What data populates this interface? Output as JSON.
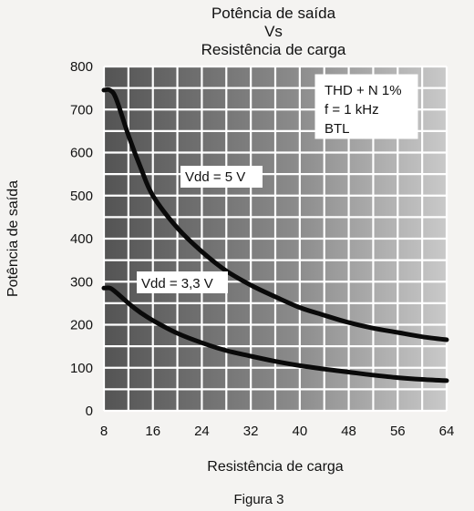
{
  "chart_data": {
    "type": "line",
    "title_lines": [
      "Potência de saída",
      "Vs",
      "Resistência de carga"
    ],
    "xlabel": "Resistência de carga",
    "ylabel": "Potência de saída",
    "caption": "Figura 3",
    "xlim": [
      8,
      64
    ],
    "ylim": [
      0,
      800
    ],
    "x_ticks": [
      8,
      16,
      24,
      32,
      40,
      48,
      56,
      64
    ],
    "y_ticks": [
      0,
      100,
      200,
      300,
      400,
      500,
      600,
      700,
      800
    ],
    "grid": true,
    "conditions": [
      "THD + N 1%",
      "f = 1 kHz",
      "BTL"
    ],
    "series": [
      {
        "name": "Vdd = 5 V",
        "x": [
          8,
          9,
          10,
          12,
          14,
          16,
          20,
          24,
          28,
          32,
          36,
          40,
          44,
          48,
          52,
          56,
          60,
          64
        ],
        "y": [
          745,
          745,
          725,
          640,
          565,
          500,
          425,
          370,
          325,
          292,
          265,
          240,
          222,
          205,
          192,
          182,
          172,
          165
        ]
      },
      {
        "name": "Vdd = 3,3 V",
        "x": [
          8,
          9,
          10,
          12,
          14,
          16,
          20,
          24,
          28,
          32,
          36,
          40,
          44,
          48,
          52,
          56,
          60,
          64
        ],
        "y": [
          285,
          285,
          275,
          250,
          228,
          210,
          180,
          158,
          140,
          127,
          115,
          105,
          97,
          90,
          83,
          77,
          73,
          70
        ]
      }
    ]
  }
}
